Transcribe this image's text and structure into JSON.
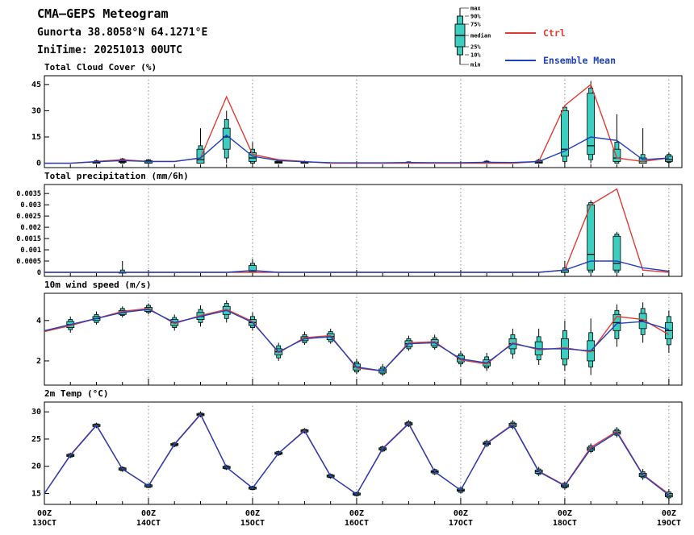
{
  "header": {
    "title": "CMA—GEPS Meteogram",
    "location": "Gunorta 38.8058°N 64.1271°E",
    "initime": "IniTime: 20251013 00UTC"
  },
  "legend": {
    "box_labels": [
      "max",
      "90%",
      "75%",
      "median",
      "25%",
      "10%",
      "min"
    ],
    "ctrl_label": "Ctrl",
    "mean_label": "Ensemble Mean"
  },
  "colors": {
    "box_fill": "#3ccfc0",
    "box_stroke": "#000000",
    "ctrl": "#e03c34",
    "mean": "#1f3fbe",
    "grid": "#8a8a8a",
    "axis": "#000000"
  },
  "chart_data": {
    "type": "boxplot-meteogram",
    "x": {
      "n_steps": 25,
      "t_max": 24.5,
      "step_hours": 6,
      "day_tick_indices": [
        0,
        4,
        8,
        12,
        16,
        20,
        24
      ],
      "labels": [
        {
          "time": "00Z",
          "date": "13OCT"
        },
        {
          "time": "00Z",
          "date": "14OCT"
        },
        {
          "time": "00Z",
          "date": "15OCT"
        },
        {
          "time": "00Z",
          "date": "16OCT"
        },
        {
          "time": "00Z",
          "date": "17OCT"
        },
        {
          "time": "00Z",
          "date": "18OCT"
        },
        {
          "time": "00Z",
          "date": "19OCT"
        }
      ]
    },
    "panels": [
      {
        "id": "cloud-cover",
        "title": "Total Cloud Cover (%)",
        "ylim": [
          -2.5,
          50
        ],
        "yticks": [
          0,
          15,
          30,
          45
        ],
        "ytick_labels": [
          "0",
          "15",
          "30",
          "45"
        ],
        "boxes": [
          null,
          null,
          [
            0,
            0,
            0,
            0.5,
            1,
            1.5,
            2
          ],
          [
            0,
            0,
            0.5,
            1,
            2,
            2.5,
            3
          ],
          [
            0,
            0,
            0,
            0.8,
            1.5,
            2,
            2.5
          ],
          null,
          [
            0,
            0,
            0,
            2,
            8,
            10,
            20
          ],
          [
            0,
            3,
            8,
            15,
            20,
            25,
            30
          ],
          [
            0,
            0,
            1,
            3,
            6,
            8,
            12
          ],
          [
            0,
            0,
            0,
            0.5,
            1,
            1.5,
            2
          ],
          [
            0,
            0,
            0,
            0.3,
            0.8,
            1,
            1.5
          ],
          null,
          null,
          null,
          [
            0,
            0,
            0,
            0.2,
            0.5,
            0.8,
            1
          ],
          null,
          null,
          [
            0,
            0,
            0,
            0.4,
            0.8,
            1.2,
            1.8
          ],
          null,
          [
            0,
            0,
            0,
            0.5,
            1.2,
            1.8,
            2.5
          ],
          [
            0,
            1,
            4,
            8,
            30,
            32,
            33
          ],
          [
            0,
            2,
            5,
            10,
            40,
            43,
            47
          ],
          [
            0,
            0,
            1,
            3,
            8,
            12,
            28
          ],
          [
            0,
            0,
            0,
            1,
            3,
            5,
            20
          ],
          [
            0,
            0.5,
            1,
            2,
            4,
            5,
            6
          ]
        ],
        "ctrl": [
          0,
          0,
          1,
          2,
          1,
          1,
          3,
          38,
          5,
          2,
          1,
          0,
          0,
          0,
          0,
          0,
          0,
          0,
          0,
          1,
          33,
          45,
          3,
          1,
          3
        ],
        "mean": [
          0,
          0,
          0.8,
          1.5,
          1,
          1,
          3,
          16,
          4,
          1.5,
          0.8,
          0.3,
          0.2,
          0.2,
          0.4,
          0.3,
          0.3,
          0.5,
          0.4,
          1,
          7,
          15,
          13,
          2,
          3
        ]
      },
      {
        "id": "precip",
        "title": "Total precipitation (mm/6h)",
        "ylim": [
          -0.00018,
          0.0039
        ],
        "yticks": [
          0,
          0.0005,
          0.001,
          0.0015,
          0.002,
          0.0025,
          0.003,
          0.0035
        ],
        "ytick_labels": [
          "0",
          "0.0005",
          "0.001",
          "0.0015",
          "0.002",
          "0.0025",
          "0.003",
          "0.0035"
        ],
        "boxes": [
          null,
          null,
          null,
          [
            0,
            0,
            0,
            0,
            0,
            0.0001,
            0.0005
          ],
          null,
          null,
          null,
          null,
          [
            0,
            0,
            0,
            5e-05,
            0.0003,
            0.0004,
            0.0006
          ],
          null,
          null,
          null,
          null,
          null,
          null,
          null,
          null,
          null,
          null,
          null,
          [
            0,
            0,
            0,
            0,
            0.0001,
            0.0002,
            0.0005
          ],
          [
            0,
            0,
            0.0001,
            0.0008,
            0.003,
            0.0031,
            0.0032
          ],
          [
            0,
            0,
            0.0001,
            0.0004,
            0.0016,
            0.0017,
            0.0018
          ],
          null,
          null
        ],
        "ctrl": [
          0,
          0,
          0,
          0,
          0,
          0,
          0,
          0,
          0,
          0,
          0,
          0,
          0,
          0,
          0,
          0,
          0,
          0,
          0,
          0,
          0.0001,
          0.003,
          0.0037,
          0.0001,
          0
        ],
        "mean": [
          0,
          0,
          0,
          0,
          0,
          0,
          0,
          0,
          8e-05,
          0,
          0,
          0,
          0,
          0,
          0,
          0,
          0,
          0,
          0,
          0,
          0.0001,
          0.0005,
          0.0005,
          0.0002,
          5e-05
        ]
      },
      {
        "id": "wind-speed",
        "title": "10m wind speed (m/s)",
        "ylim": [
          0.8,
          5.35
        ],
        "yticks": [
          2,
          4
        ],
        "ytick_labels": [
          "2",
          "4"
        ],
        "boxes": [
          null,
          [
            3.4,
            3.55,
            3.65,
            3.8,
            3.95,
            4.05,
            4.2
          ],
          [
            3.8,
            3.9,
            4.0,
            4.1,
            4.2,
            4.3,
            4.45
          ],
          [
            4.15,
            4.25,
            4.3,
            4.4,
            4.5,
            4.6,
            4.7
          ],
          [
            4.3,
            4.4,
            4.45,
            4.55,
            4.65,
            4.75,
            4.85
          ],
          [
            3.5,
            3.65,
            3.75,
            3.9,
            4.05,
            4.15,
            4.3
          ],
          [
            3.7,
            3.9,
            4.05,
            4.2,
            4.4,
            4.55,
            4.75
          ],
          [
            3.9,
            4.1,
            4.3,
            4.5,
            4.7,
            4.85,
            5.0
          ],
          [
            3.5,
            3.65,
            3.75,
            3.9,
            4.05,
            4.2,
            4.4
          ],
          [
            2.0,
            2.15,
            2.3,
            2.45,
            2.6,
            2.75,
            2.9
          ],
          [
            2.8,
            2.9,
            3.0,
            3.1,
            3.2,
            3.3,
            3.45
          ],
          [
            2.85,
            2.95,
            3.05,
            3.2,
            3.35,
            3.45,
            3.6
          ],
          [
            1.35,
            1.45,
            1.55,
            1.7,
            1.85,
            1.95,
            2.1
          ],
          [
            1.25,
            1.35,
            1.4,
            1.5,
            1.6,
            1.7,
            1.85
          ],
          [
            2.5,
            2.6,
            2.7,
            2.85,
            3.0,
            3.1,
            3.25
          ],
          [
            2.55,
            2.65,
            2.75,
            2.9,
            3.05,
            3.15,
            3.3
          ],
          [
            1.7,
            1.85,
            1.95,
            2.1,
            2.25,
            2.35,
            2.5
          ],
          [
            1.5,
            1.65,
            1.75,
            1.9,
            2.05,
            2.2,
            2.4
          ],
          [
            2.1,
            2.35,
            2.6,
            2.85,
            3.1,
            3.3,
            3.6
          ],
          [
            1.8,
            2.05,
            2.3,
            2.6,
            2.95,
            3.2,
            3.6
          ],
          [
            1.5,
            1.8,
            2.1,
            2.6,
            3.1,
            3.5,
            4.0
          ],
          [
            1.3,
            1.7,
            2.0,
            2.5,
            3.0,
            3.4,
            4.1
          ],
          [
            2.7,
            3.1,
            3.5,
            3.9,
            4.3,
            4.5,
            4.8
          ],
          [
            2.9,
            3.3,
            3.6,
            4.0,
            4.35,
            4.6,
            4.9
          ],
          [
            2.4,
            2.8,
            3.1,
            3.5,
            3.9,
            4.2,
            4.5
          ]
        ],
        "ctrl": [
          3.45,
          3.75,
          4.1,
          4.45,
          4.6,
          3.85,
          4.25,
          4.55,
          3.95,
          2.4,
          3.15,
          3.25,
          1.65,
          1.5,
          2.9,
          2.95,
          2.05,
          1.85,
          2.9,
          2.55,
          2.65,
          2.45,
          4.2,
          4.05,
          3.3
        ],
        "mean": [
          3.5,
          3.8,
          4.1,
          4.4,
          4.55,
          3.9,
          4.2,
          4.5,
          3.9,
          2.45,
          3.1,
          3.2,
          1.7,
          1.5,
          2.85,
          2.9,
          2.1,
          1.9,
          2.85,
          2.6,
          2.6,
          2.5,
          3.85,
          3.95,
          3.55
        ],
        "yticks_minor": [
          1,
          3,
          5
        ]
      },
      {
        "id": "temp-2m",
        "title": "2m Temp (°C)",
        "ylim": [
          13,
          31.8
        ],
        "yticks": [
          15,
          20,
          25,
          30
        ],
        "ytick_labels": [
          "15",
          "20",
          "25",
          "30"
        ],
        "boxes": [
          null,
          [
            21.5,
            21.7,
            21.8,
            22.0,
            22.2,
            22.3,
            22.5
          ],
          [
            27.0,
            27.2,
            27.3,
            27.5,
            27.7,
            27.8,
            28.0
          ],
          [
            19.0,
            19.2,
            19.3,
            19.5,
            19.7,
            19.8,
            20.0
          ],
          [
            16.0,
            16.1,
            16.2,
            16.4,
            16.6,
            16.7,
            16.8
          ],
          [
            23.5,
            23.7,
            23.8,
            24.0,
            24.2,
            24.3,
            24.5
          ],
          [
            29.0,
            29.2,
            29.3,
            29.5,
            29.7,
            29.8,
            30.1
          ],
          [
            19.3,
            19.5,
            19.6,
            19.8,
            20.0,
            20.1,
            20.3
          ],
          [
            15.6,
            15.7,
            15.8,
            16.0,
            16.2,
            16.3,
            16.4
          ],
          [
            21.9,
            22.1,
            22.2,
            22.4,
            22.6,
            22.7,
            22.9
          ],
          [
            26.0,
            26.2,
            26.3,
            26.5,
            26.7,
            26.8,
            27.0
          ],
          [
            17.7,
            17.9,
            18.0,
            18.2,
            18.4,
            18.5,
            18.7
          ],
          [
            14.5,
            14.6,
            14.7,
            14.9,
            15.1,
            15.2,
            15.3
          ],
          [
            22.6,
            22.8,
            23.0,
            23.2,
            23.4,
            23.6,
            23.8
          ],
          [
            27.2,
            27.4,
            27.6,
            27.8,
            28.0,
            28.2,
            28.5
          ],
          [
            18.4,
            18.6,
            18.8,
            19.0,
            19.2,
            19.4,
            19.6
          ],
          [
            15.0,
            15.2,
            15.4,
            15.6,
            15.8,
            16.0,
            16.2
          ],
          [
            23.5,
            23.8,
            24.0,
            24.2,
            24.4,
            24.6,
            24.9
          ],
          [
            26.8,
            27.1,
            27.3,
            27.6,
            27.9,
            28.1,
            28.5
          ],
          [
            18.2,
            18.5,
            18.7,
            19.0,
            19.3,
            19.5,
            19.9
          ],
          [
            15.7,
            16.0,
            16.2,
            16.4,
            16.7,
            16.9,
            17.2
          ],
          [
            22.4,
            22.7,
            22.9,
            23.2,
            23.5,
            23.8,
            24.2
          ],
          [
            25.3,
            25.7,
            25.9,
            26.2,
            26.5,
            26.8,
            27.2
          ],
          [
            17.5,
            17.9,
            18.1,
            18.4,
            18.7,
            19.0,
            19.5
          ],
          [
            13.8,
            14.2,
            14.4,
            14.7,
            15.0,
            15.3,
            15.8
          ]
        ],
        "ctrl": [
          15.0,
          22.1,
          27.6,
          19.5,
          16.4,
          24.1,
          29.6,
          19.8,
          16.0,
          22.4,
          26.6,
          18.2,
          14.9,
          23.3,
          27.9,
          19.0,
          15.6,
          24.3,
          27.7,
          19.1,
          16.5,
          23.5,
          26.4,
          18.5,
          14.9
        ],
        "mean": [
          15.0,
          22.0,
          27.5,
          19.5,
          16.4,
          24.0,
          29.5,
          19.8,
          16.0,
          22.4,
          26.5,
          18.2,
          14.9,
          23.2,
          27.8,
          19.0,
          15.6,
          24.2,
          27.6,
          19.0,
          16.4,
          23.2,
          26.2,
          18.4,
          14.7
        ]
      }
    ]
  }
}
